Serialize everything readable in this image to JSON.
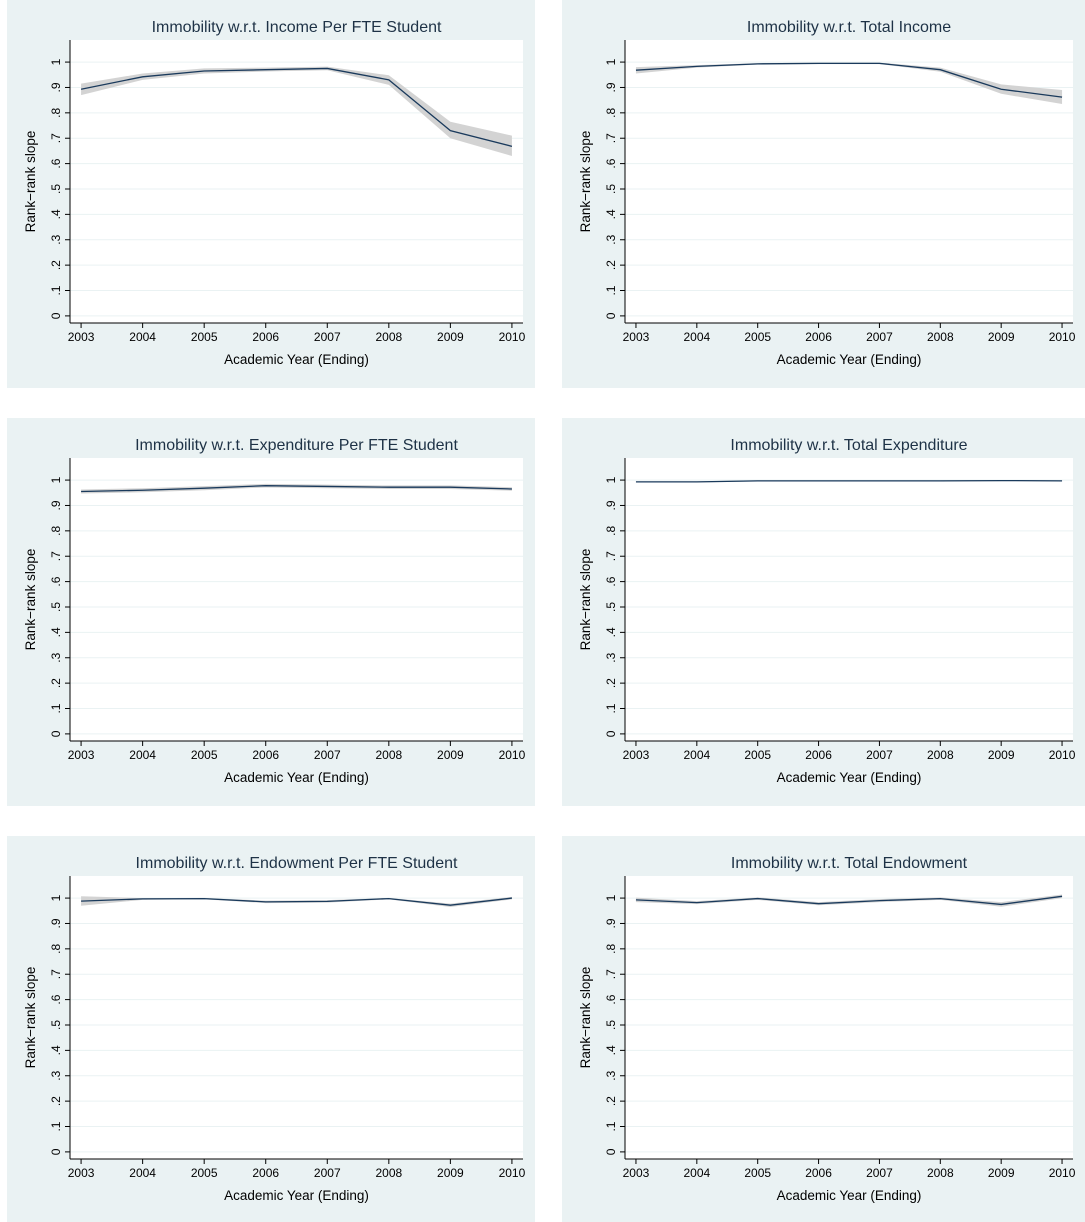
{
  "chart_data": [
    {
      "type": "line",
      "title": "Immobility w.r.t. Income Per FTE Student",
      "x_label": "Academic Year (Ending)",
      "y_label": "Rank−rank slope",
      "x": [
        2003,
        2004,
        2005,
        2006,
        2007,
        2008,
        2009,
        2010
      ],
      "values": [
        0.893,
        0.942,
        0.965,
        0.97,
        0.975,
        0.93,
        0.73,
        0.668
      ],
      "ci_lower": [
        0.87,
        0.93,
        0.955,
        0.963,
        0.968,
        0.91,
        0.7,
        0.63
      ],
      "ci_upper": [
        0.915,
        0.955,
        0.975,
        0.978,
        0.982,
        0.948,
        0.765,
        0.71
      ],
      "color": "#1a3a5c",
      "band_color": "#d3d3d3",
      "grid": true,
      "xlim": [
        2002.82,
        2010.18
      ],
      "xticks": [
        2003,
        2004,
        2005,
        2006,
        2007,
        2008,
        2009,
        2010
      ],
      "ylim": [
        -0.028,
        1.087
      ],
      "yticks": [
        0,
        {
          "value": 0.1,
          "label": ".1"
        },
        {
          "value": 0.2,
          "label": ".2"
        },
        {
          "value": 0.3,
          "label": ".3"
        },
        {
          "value": 0.4,
          "label": ".4"
        },
        {
          "value": 0.5,
          "label": ".5"
        },
        {
          "value": 0.6,
          "label": ".6"
        },
        {
          "value": 0.7,
          "label": ".7"
        },
        {
          "value": 0.8,
          "label": ".8"
        },
        {
          "value": 0.9,
          "label": ".9"
        },
        1
      ]
    },
    {
      "type": "line",
      "title": "Immobility w.r.t. Total Income",
      "x_label": "Academic Year (Ending)",
      "y_label": "Rank−rank slope",
      "x": [
        2003,
        2004,
        2005,
        2006,
        2007,
        2008,
        2009,
        2010
      ],
      "values": [
        0.968,
        0.983,
        0.993,
        0.995,
        0.995,
        0.97,
        0.893,
        0.862
      ],
      "ci_lower": [
        0.955,
        0.978,
        0.99,
        0.992,
        0.992,
        0.962,
        0.875,
        0.835
      ],
      "ci_upper": [
        0.98,
        0.988,
        0.996,
        0.998,
        0.998,
        0.978,
        0.912,
        0.89
      ],
      "color": "#1a3a5c",
      "band_color": "#d3d3d3",
      "grid": true,
      "xlim": [
        2002.82,
        2010.18
      ],
      "xticks": [
        2003,
        2004,
        2005,
        2006,
        2007,
        2008,
        2009,
        2010
      ],
      "ylim": [
        -0.028,
        1.087
      ],
      "yticks": [
        0,
        {
          "value": 0.1,
          "label": ".1"
        },
        {
          "value": 0.2,
          "label": ".2"
        },
        {
          "value": 0.3,
          "label": ".3"
        },
        {
          "value": 0.4,
          "label": ".4"
        },
        {
          "value": 0.5,
          "label": ".5"
        },
        {
          "value": 0.6,
          "label": ".6"
        },
        {
          "value": 0.7,
          "label": ".7"
        },
        {
          "value": 0.8,
          "label": ".8"
        },
        {
          "value": 0.9,
          "label": ".9"
        },
        1
      ]
    },
    {
      "type": "line",
      "title": "Immobility w.r.t. Expenditure Per FTE Student",
      "x_label": "Academic Year (Ending)",
      "y_label": "Rank−rank slope",
      "x": [
        2003,
        2004,
        2005,
        2006,
        2007,
        2008,
        2009,
        2010
      ],
      "values": [
        0.955,
        0.96,
        0.968,
        0.978,
        0.975,
        0.972,
        0.972,
        0.965
      ],
      "ci_lower": [
        0.947,
        0.952,
        0.96,
        0.971,
        0.968,
        0.965,
        0.965,
        0.958
      ],
      "ci_upper": [
        0.963,
        0.968,
        0.976,
        0.985,
        0.982,
        0.979,
        0.979,
        0.972
      ],
      "color": "#1a3a5c",
      "band_color": "#d3d3d3",
      "grid": true,
      "xlim": [
        2002.82,
        2010.18
      ],
      "xticks": [
        2003,
        2004,
        2005,
        2006,
        2007,
        2008,
        2009,
        2010
      ],
      "ylim": [
        -0.028,
        1.087
      ],
      "yticks": [
        0,
        {
          "value": 0.1,
          "label": ".1"
        },
        {
          "value": 0.2,
          "label": ".2"
        },
        {
          "value": 0.3,
          "label": ".3"
        },
        {
          "value": 0.4,
          "label": ".4"
        },
        {
          "value": 0.5,
          "label": ".5"
        },
        {
          "value": 0.6,
          "label": ".6"
        },
        {
          "value": 0.7,
          "label": ".7"
        },
        {
          "value": 0.8,
          "label": ".8"
        },
        {
          "value": 0.9,
          "label": ".9"
        },
        1
      ]
    },
    {
      "type": "line",
      "title": "Immobility w.r.t. Total Expenditure",
      "x_label": "Academic Year (Ending)",
      "y_label": "Rank−rank slope",
      "x": [
        2003,
        2004,
        2005,
        2006,
        2007,
        2008,
        2009,
        2010
      ],
      "values": [
        0.993,
        0.993,
        0.997,
        0.997,
        0.997,
        0.997,
        0.998,
        0.997
      ],
      "ci_lower": [
        0.991,
        0.991,
        0.995,
        0.995,
        0.995,
        0.995,
        0.996,
        0.995
      ],
      "ci_upper": [
        0.995,
        0.995,
        0.999,
        0.999,
        0.999,
        0.999,
        1.0,
        0.999
      ],
      "color": "#1a3a5c",
      "band_color": "#d3d3d3",
      "grid": true,
      "xlim": [
        2002.82,
        2010.18
      ],
      "xticks": [
        2003,
        2004,
        2005,
        2006,
        2007,
        2008,
        2009,
        2010
      ],
      "ylim": [
        -0.028,
        1.087
      ],
      "yticks": [
        0,
        {
          "value": 0.1,
          "label": ".1"
        },
        {
          "value": 0.2,
          "label": ".2"
        },
        {
          "value": 0.3,
          "label": ".3"
        },
        {
          "value": 0.4,
          "label": ".4"
        },
        {
          "value": 0.5,
          "label": ".5"
        },
        {
          "value": 0.6,
          "label": ".6"
        },
        {
          "value": 0.7,
          "label": ".7"
        },
        {
          "value": 0.8,
          "label": ".8"
        },
        {
          "value": 0.9,
          "label": ".9"
        },
        1
      ]
    },
    {
      "type": "line",
      "title": "Immobility w.r.t. Endowment Per FTE Student",
      "x_label": "Academic Year (Ending)",
      "y_label": "Rank−rank slope",
      "x": [
        2003,
        2004,
        2005,
        2006,
        2007,
        2008,
        2009,
        2010
      ],
      "values": [
        0.988,
        0.997,
        0.998,
        0.985,
        0.987,
        0.998,
        0.972,
        1.0
      ],
      "ci_lower": [
        0.97,
        0.993,
        0.995,
        0.98,
        0.982,
        0.995,
        0.965,
        0.995
      ],
      "ci_upper": [
        1.007,
        1.0,
        1.001,
        0.99,
        0.992,
        1.001,
        0.978,
        1.005
      ],
      "color": "#1a3a5c",
      "band_color": "#d3d3d3",
      "grid": true,
      "xlim": [
        2002.82,
        2010.18
      ],
      "xticks": [
        2003,
        2004,
        2005,
        2006,
        2007,
        2008,
        2009,
        2010
      ],
      "ylim": [
        -0.028,
        1.087
      ],
      "yticks": [
        0,
        {
          "value": 0.1,
          "label": ".1"
        },
        {
          "value": 0.2,
          "label": ".2"
        },
        {
          "value": 0.3,
          "label": ".3"
        },
        {
          "value": 0.4,
          "label": ".4"
        },
        {
          "value": 0.5,
          "label": ".5"
        },
        {
          "value": 0.6,
          "label": ".6"
        },
        {
          "value": 0.7,
          "label": ".7"
        },
        {
          "value": 0.8,
          "label": ".8"
        },
        {
          "value": 0.9,
          "label": ".9"
        },
        1
      ]
    },
    {
      "type": "line",
      "title": "Immobility w.r.t. Total Endowment",
      "x_label": "Academic Year (Ending)",
      "y_label": "Rank−rank slope",
      "x": [
        2003,
        2004,
        2005,
        2006,
        2007,
        2008,
        2009,
        2010
      ],
      "values": [
        0.993,
        0.982,
        0.998,
        0.978,
        0.99,
        0.998,
        0.975,
        1.007
      ],
      "ci_lower": [
        0.984,
        0.976,
        0.993,
        0.972,
        0.984,
        0.993,
        0.966,
        1.0
      ],
      "ci_upper": [
        1.002,
        0.988,
        1.003,
        0.984,
        0.996,
        1.003,
        0.984,
        1.014
      ],
      "color": "#1a3a5c",
      "band_color": "#d3d3d3",
      "grid": true,
      "xlim": [
        2002.82,
        2010.18
      ],
      "xticks": [
        2003,
        2004,
        2005,
        2006,
        2007,
        2008,
        2009,
        2010
      ],
      "ylim": [
        -0.028,
        1.087
      ],
      "yticks": [
        0,
        {
          "value": 0.1,
          "label": ".1"
        },
        {
          "value": 0.2,
          "label": ".2"
        },
        {
          "value": 0.3,
          "label": ".3"
        },
        {
          "value": 0.4,
          "label": ".4"
        },
        {
          "value": 0.5,
          "label": ".5"
        },
        {
          "value": 0.6,
          "label": ".6"
        },
        {
          "value": 0.7,
          "label": ".7"
        },
        {
          "value": 0.8,
          "label": ".8"
        },
        {
          "value": 0.9,
          "label": ".9"
        },
        1
      ]
    }
  ]
}
